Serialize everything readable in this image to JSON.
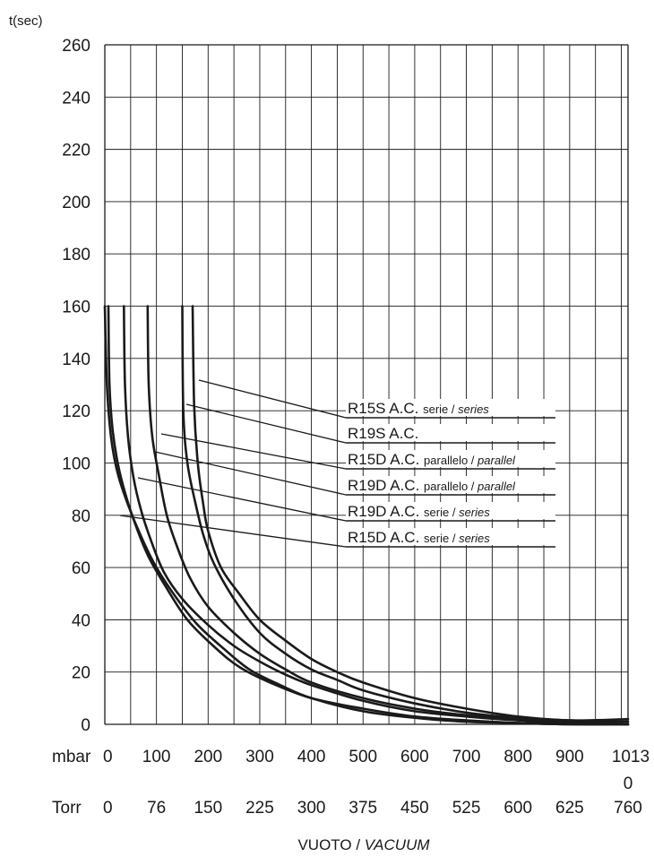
{
  "chart_data": {
    "type": "line",
    "title": "",
    "ylabel": "t(sec)",
    "ylim": [
      0,
      260
    ],
    "y_ticks": [
      0,
      20,
      40,
      60,
      80,
      100,
      120,
      140,
      160,
      180,
      200,
      220,
      240,
      260
    ],
    "xlim": [
      0,
      1013
    ],
    "x_primary_label": "mbar",
    "x_secondary_label": "Torr",
    "x_ticks_mbar": [
      "0",
      "100",
      "200",
      "300",
      "400",
      "500",
      "600",
      "700",
      "800",
      "900",
      "1013"
    ],
    "x_tick_mbar_extra": "0",
    "x_ticks_torr": [
      "0",
      "76",
      "150",
      "225",
      "300",
      "375",
      "450",
      "525",
      "600",
      "625",
      "760"
    ],
    "x_title_main": "VUOTO / ",
    "x_title_italic": "VACUUM",
    "grid": true,
    "series": [
      {
        "name": "R15S A.C.",
        "name_suffix": "serie / ",
        "name_italic": "series",
        "x": [
          170,
          173,
          180,
          190,
          200,
          225,
          260,
          300,
          350,
          400,
          450,
          500,
          600,
          700,
          800,
          900,
          1013
        ],
        "y": [
          160,
          122,
          100,
          85,
          74,
          60,
          50,
          40,
          32,
          25,
          20,
          16,
          10,
          6,
          3,
          1.5,
          2
        ]
      },
      {
        "name": "R19S A.C.",
        "name_suffix": "",
        "name_italic": "",
        "x": [
          150,
          152,
          160,
          175,
          190,
          210,
          250,
          300,
          350,
          400,
          450,
          500,
          600,
          700,
          800,
          900,
          1013
        ],
        "y": [
          160,
          120,
          100,
          85,
          73,
          62,
          48,
          35,
          27,
          21,
          17,
          13,
          8,
          4.5,
          2.5,
          1.5,
          1
        ]
      },
      {
        "name": "R15D A.C.",
        "name_suffix": "parallelo / ",
        "name_italic": "parallel",
        "x": [
          83,
          85,
          92,
          105,
          120,
          140,
          165,
          200,
          250,
          300,
          350,
          400,
          500,
          600,
          700,
          800,
          900,
          1013
        ],
        "y": [
          160,
          130,
          110,
          95,
          80,
          68,
          56,
          45,
          35,
          27,
          21,
          16,
          10,
          6,
          3.5,
          2,
          1,
          1
        ]
      },
      {
        "name": "R19D A.C.",
        "name_suffix": "parallelo / ",
        "name_italic": "parallel",
        "x": [
          37,
          39,
          45,
          55,
          70,
          90,
          115,
          150,
          200,
          250,
          300,
          350,
          400,
          500,
          600,
          700,
          800,
          900,
          1013
        ],
        "y": [
          160,
          130,
          110,
          95,
          82,
          70,
          58,
          48,
          38,
          30,
          24,
          19,
          15,
          9,
          5,
          3,
          1.5,
          0.5,
          0
        ]
      },
      {
        "name": "R19D A.C.",
        "name_suffix": "serie / ",
        "name_italic": "series",
        "x": [
          7,
          9,
          15,
          25,
          40,
          60,
          85,
          120,
          160,
          210,
          260,
          320,
          400,
          500,
          600,
          700,
          800,
          900,
          1013
        ],
        "y": [
          160,
          130,
          113,
          100,
          88,
          76,
          64,
          52,
          40,
          30,
          22,
          16,
          10,
          6,
          3,
          1.5,
          0.5,
          0,
          0
        ]
      },
      {
        "name": "R15D A.C.",
        "name_suffix": "serie / ",
        "name_italic": "series",
        "x": [
          0,
          4,
          12,
          25,
          45,
          70,
          100,
          140,
          180,
          230,
          280,
          340,
          400,
          500,
          600,
          700,
          800,
          900,
          1013
        ],
        "y": [
          160,
          130,
          110,
          96,
          84,
          72,
          60,
          48,
          38,
          29,
          21,
          15,
          10,
          5,
          2.5,
          1,
          0.5,
          0,
          0
        ]
      }
    ],
    "legend_placement": "center-right, with leader lines to curves"
  }
}
